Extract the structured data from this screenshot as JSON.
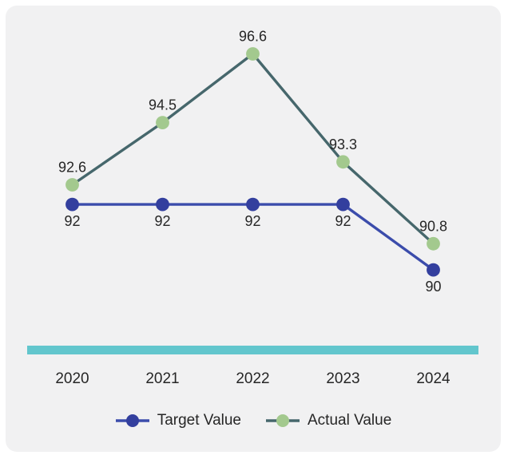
{
  "card": {
    "background": "#f1f1f2"
  },
  "chart_data": {
    "type": "line",
    "categories": [
      "2020",
      "2021",
      "2022",
      "2023",
      "2024"
    ],
    "series": [
      {
        "name": "Actual Value",
        "values": [
          92.6,
          94.5,
          96.6,
          93.3,
          90.8
        ],
        "labels": [
          "92.6",
          "94.5",
          "96.6",
          "93.3",
          "90.8"
        ],
        "line_color": "#46676c",
        "marker_color": "#a3c98e",
        "label_position": "above"
      },
      {
        "name": "Target Value",
        "values": [
          92,
          92,
          92,
          92,
          90
        ],
        "labels": [
          "92",
          "92",
          "92",
          "92",
          "90"
        ],
        "line_color": "#3b4cab",
        "marker_color": "#333f9e",
        "label_position": "below"
      }
    ],
    "title": "",
    "xlabel": "",
    "ylabel": "",
    "ylim": [
      89.5,
      97.1
    ],
    "grid": "off",
    "legend_position": "bottom",
    "axis_line_color": "#62c6cd",
    "label_color": "#262626",
    "label_font_size": 18
  },
  "legend_order": [
    "Target Value",
    "Actual Value"
  ]
}
